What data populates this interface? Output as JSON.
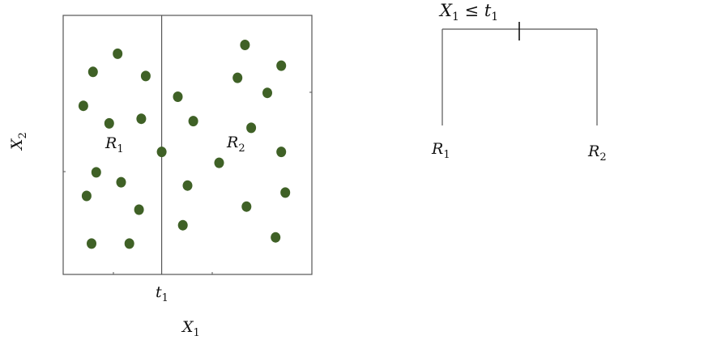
{
  "colors": {
    "axis": "#555555",
    "point_fill": "#3f6126",
    "text": "#111111"
  },
  "left_panel": {
    "x_axis_label": "X",
    "x_axis_sub": "1",
    "y_axis_label": "X",
    "y_axis_sub": "2",
    "split_label": "t",
    "split_sub": "1",
    "region_1_label": "R",
    "region_1_sub": "1",
    "region_2_label": "R",
    "region_2_sub": "2",
    "points": [
      {
        "x": 0.219,
        "y": 0.852
      },
      {
        "x": 0.12,
        "y": 0.782
      },
      {
        "x": 0.332,
        "y": 0.766
      },
      {
        "x": 0.081,
        "y": 0.651
      },
      {
        "x": 0.185,
        "y": 0.583
      },
      {
        "x": 0.314,
        "y": 0.601
      },
      {
        "x": 0.133,
        "y": 0.394
      },
      {
        "x": 0.233,
        "y": 0.356
      },
      {
        "x": 0.094,
        "y": 0.303
      },
      {
        "x": 0.305,
        "y": 0.25
      },
      {
        "x": 0.114,
        "y": 0.119
      },
      {
        "x": 0.266,
        "y": 0.119
      },
      {
        "x": 0.396,
        "y": 0.473
      },
      {
        "x": 0.461,
        "y": 0.686
      },
      {
        "x": 0.523,
        "y": 0.592
      },
      {
        "x": 0.627,
        "y": 0.431
      },
      {
        "x": 0.5,
        "y": 0.343
      },
      {
        "x": 0.481,
        "y": 0.19
      },
      {
        "x": 0.731,
        "y": 0.886
      },
      {
        "x": 0.877,
        "y": 0.806
      },
      {
        "x": 0.701,
        "y": 0.759
      },
      {
        "x": 0.821,
        "y": 0.701
      },
      {
        "x": 0.756,
        "y": 0.566
      },
      {
        "x": 0.877,
        "y": 0.473
      },
      {
        "x": 0.893,
        "y": 0.316
      },
      {
        "x": 0.737,
        "y": 0.262
      },
      {
        "x": 0.854,
        "y": 0.143
      }
    ],
    "split_x": 0.396
  },
  "right_panel": {
    "root_label": "X",
    "root_sub": "1",
    "root_op": " ≤ t",
    "root_op_sub": "1",
    "leaf_left_label": "R",
    "leaf_left_sub": "1",
    "leaf_right_label": "R",
    "leaf_right_sub": "2"
  }
}
